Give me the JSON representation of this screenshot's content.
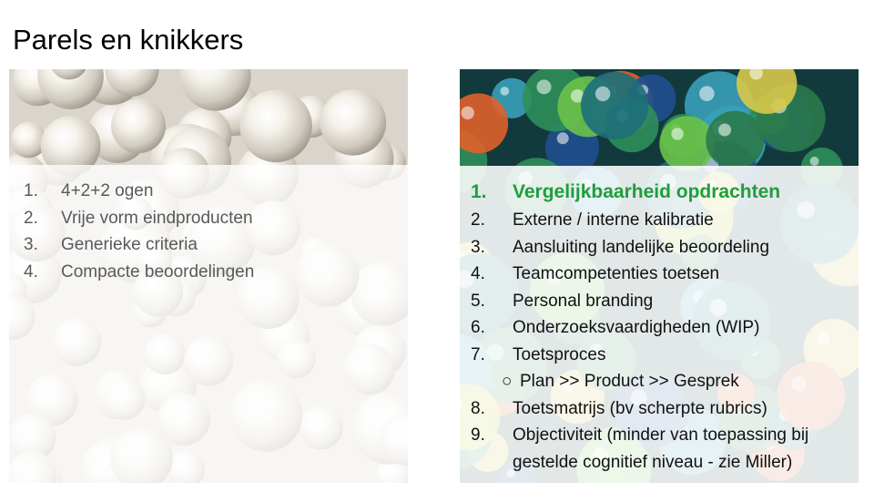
{
  "title": "Parels en knikkers",
  "left_list": [
    {
      "num": "1.",
      "text": "4+2+2 ogen"
    },
    {
      "num": "2.",
      "text": "Vrije vorm eindproducten"
    },
    {
      "num": "3.",
      "text": "Generieke criteria"
    },
    {
      "num": "4.",
      "text": "Compacte beoordelingen"
    }
  ],
  "right_list": [
    {
      "num": "1.",
      "text": "Vergelijkbaarheid opdrachten"
    },
    {
      "num": "2.",
      "text": "Externe / interne kalibratie"
    },
    {
      "num": "3.",
      "text": "Aansluiting landelijke beoordeling"
    },
    {
      "num": "4.",
      "text": "Teamcompetenties toetsen"
    },
    {
      "num": "5.",
      "text": "Personal branding"
    },
    {
      "num": "6.",
      "text": "Onderzoeksvaardigheden (WIP)"
    },
    {
      "num": "7.",
      "text": "Toetsproces"
    },
    {
      "num": "○",
      "text": "Plan >> Product >> Gesprek"
    },
    {
      "num": "8.",
      "text": "Toetsmatrijs (bv scherpte rubrics)"
    },
    {
      "num": "9.",
      "text": "Objectiviteit (minder van toepassing bij gestelde cognitief niveau - zie Miller)"
    }
  ],
  "colors": {
    "highlight": "#1e9e3c",
    "left_text": "#595959",
    "right_text": "#111111"
  },
  "images": {
    "left": "pearls-photo",
    "right": "marbles-photo"
  }
}
